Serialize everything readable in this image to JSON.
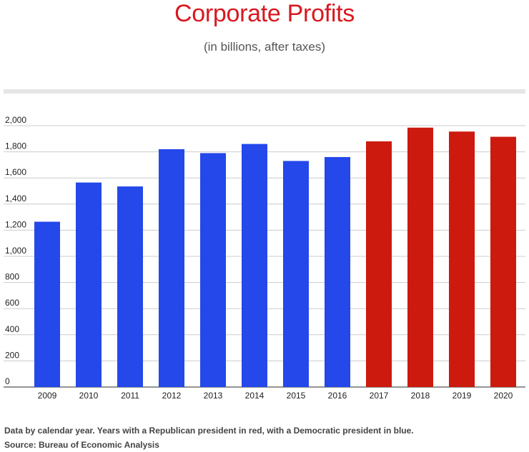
{
  "colors": {
    "title": "#d71920",
    "democratic": "#2448ea",
    "republican": "#cc1a0e",
    "gridline": "#cccccc",
    "axis_text": "#222222"
  },
  "chart_data": {
    "type": "bar",
    "title": "Corporate Profits",
    "subtitle": "(in billions, after taxes)",
    "categories": [
      "2009",
      "2010",
      "2011",
      "2012",
      "2013",
      "2014",
      "2015",
      "2016",
      "2017",
      "2018",
      "2019",
      "2020"
    ],
    "values": [
      1265,
      1565,
      1535,
      1820,
      1790,
      1860,
      1730,
      1760,
      1880,
      1985,
      1955,
      1915
    ],
    "party": [
      "democratic",
      "democratic",
      "democratic",
      "democratic",
      "democratic",
      "democratic",
      "democratic",
      "democratic",
      "republican",
      "republican",
      "republican",
      "republican"
    ],
    "yticks": [
      0,
      200,
      400,
      600,
      800,
      1000,
      1200,
      1400,
      1600,
      1800,
      2000
    ],
    "ytick_labels": [
      "0",
      "200",
      "400",
      "600",
      "800",
      "1,000",
      "1,200",
      "1,400",
      "1,600",
      "1,800",
      "2,000"
    ],
    "ylim": [
      0,
      2000
    ],
    "xlabel": "",
    "ylabel": "",
    "grid": true,
    "legend": "none"
  },
  "notes": {
    "line1": "Data by calendar year. Years with a Republican president in red, with a Democratic president in blue.",
    "line2": "Source: Bureau of Economic Analysis"
  }
}
